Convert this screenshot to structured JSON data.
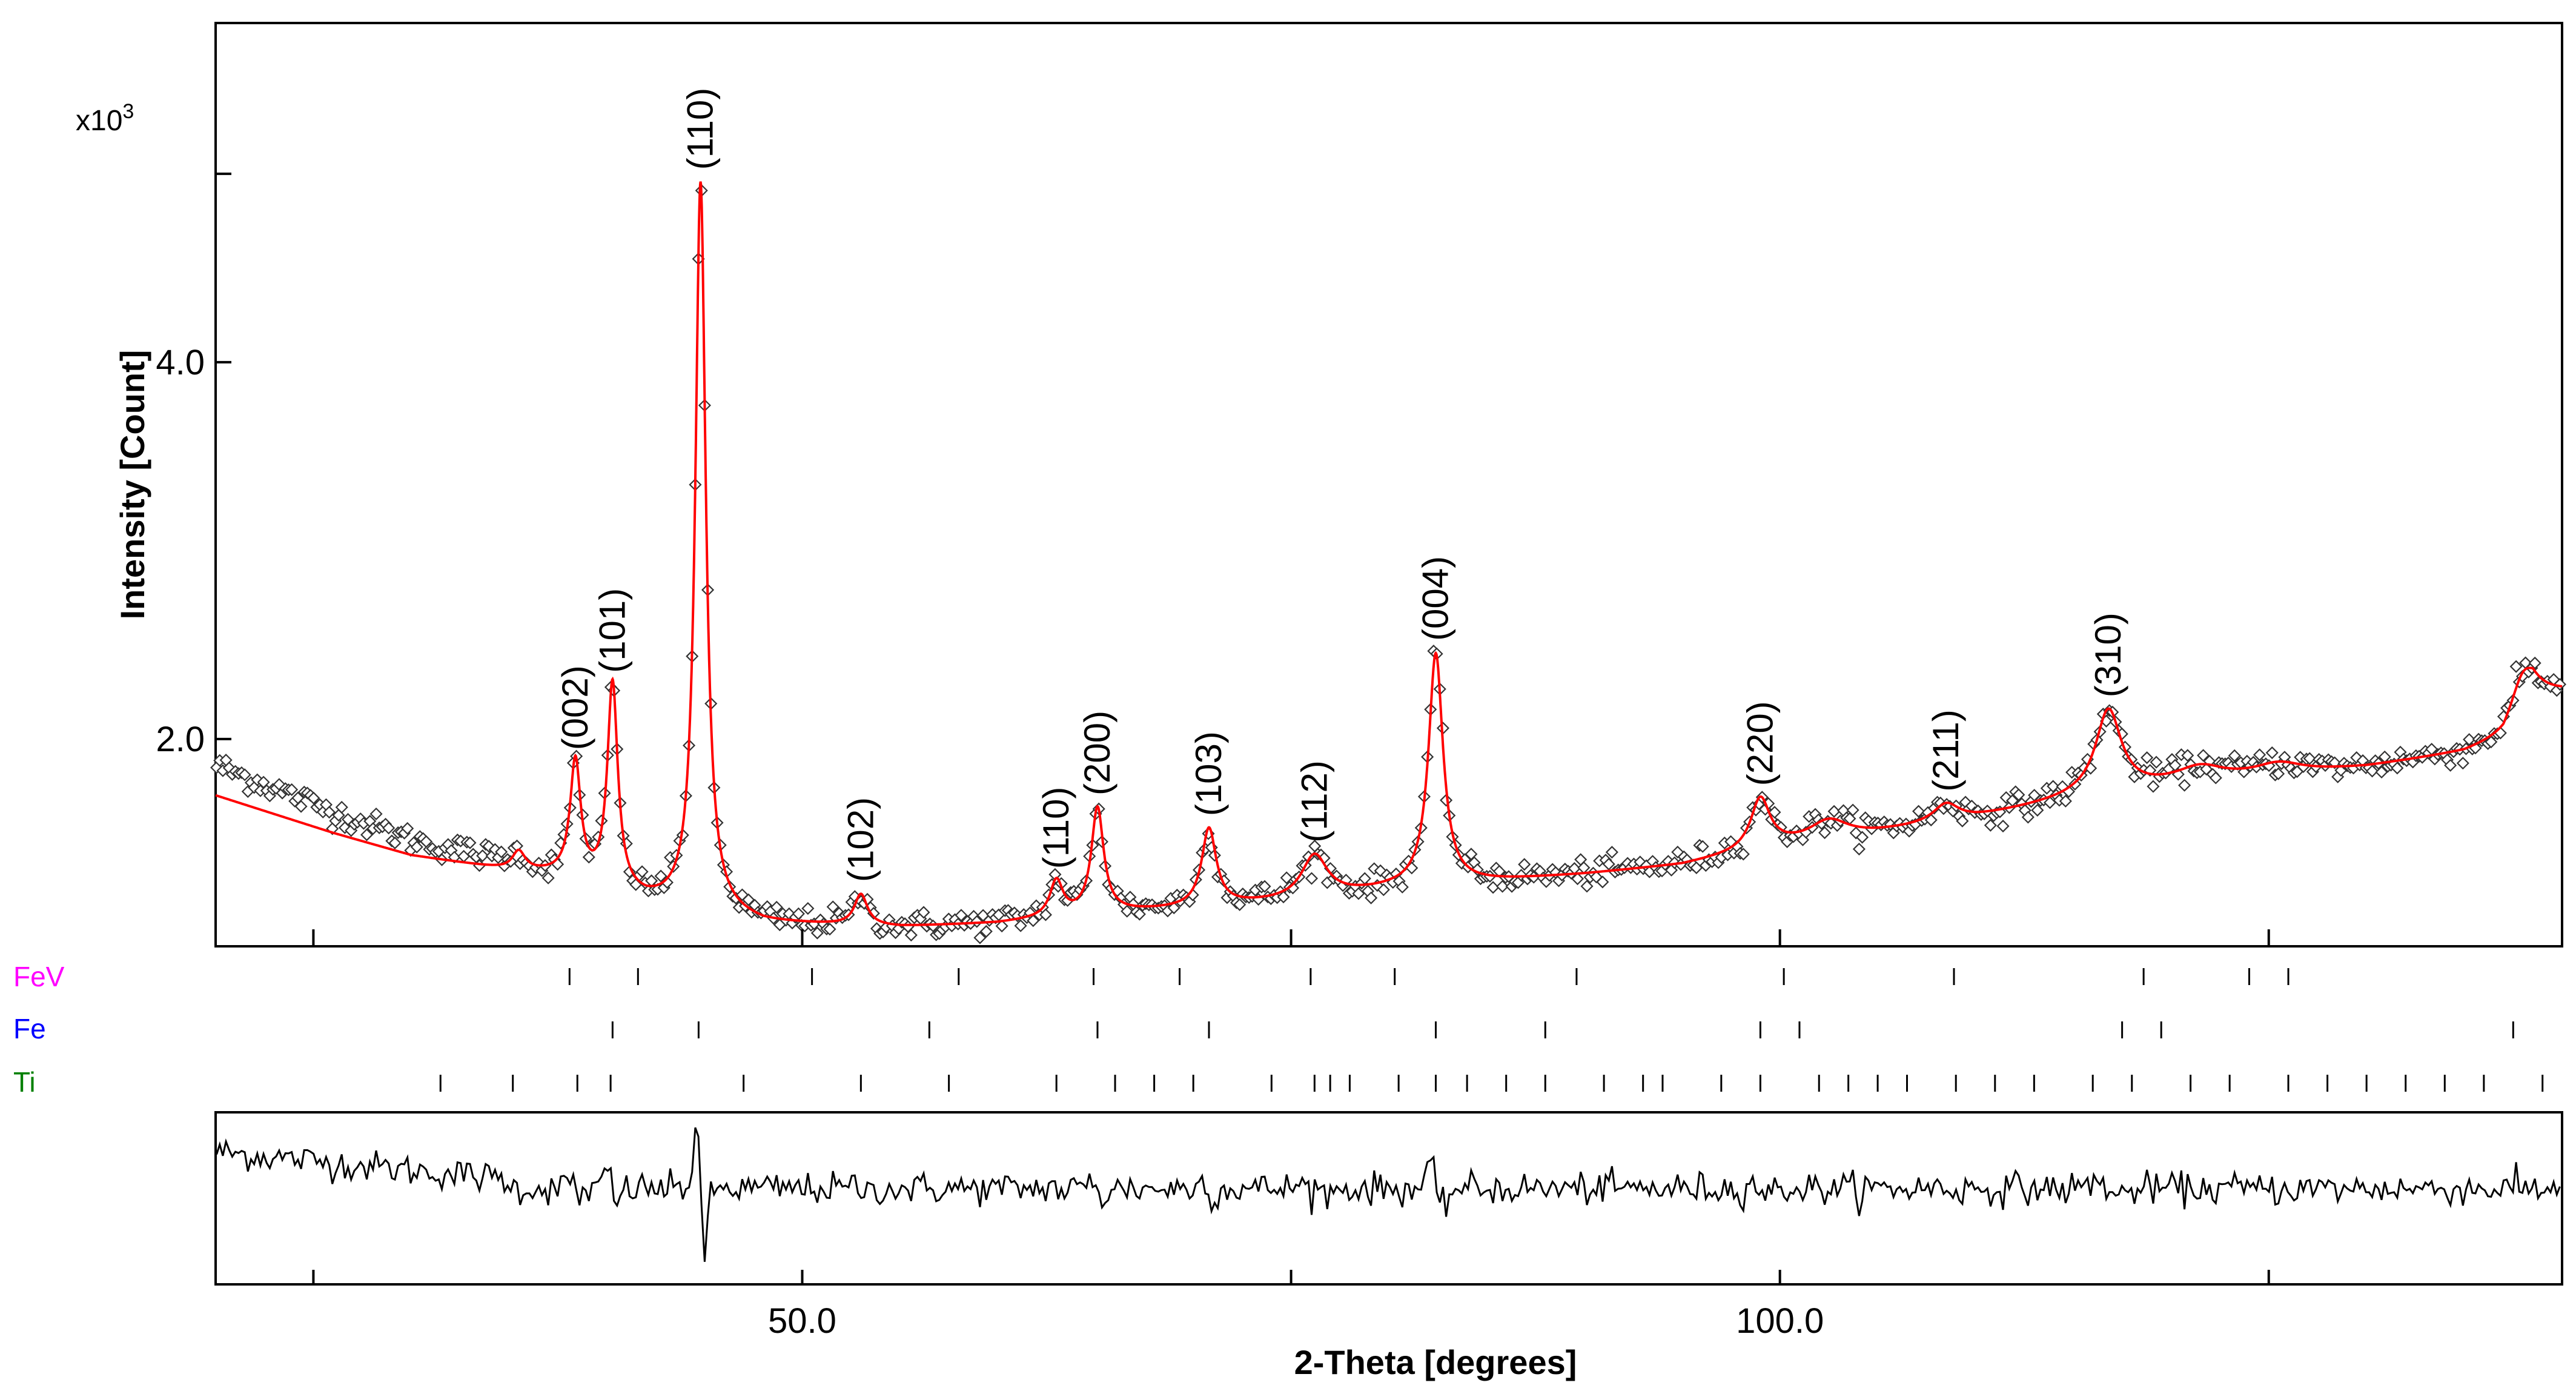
{
  "chart_data": {
    "type": "line",
    "xlabel": "2-Theta [degrees]",
    "ylabel": "Intensity [Count]",
    "y_multiplier": "x10",
    "y_multiplier_exp": "3",
    "xlim": [
      20,
      140
    ],
    "ylim": [
      0.9,
      5.8
    ],
    "x_ticks": [
      25,
      50,
      75,
      100,
      125
    ],
    "x_tick_labels": [
      "50.0",
      "100.0"
    ],
    "y_ticks": [
      2.0,
      4.0,
      5.0
    ],
    "y_tick_labels": [
      "2.0",
      "4.0"
    ],
    "grid": false,
    "legend": "none",
    "colors": {
      "fit": "#ff0000",
      "observed": "#555555",
      "residual": "#000000",
      "FeV": "#ff00ff",
      "Fe": "#0000ff",
      "Ti": "#008000"
    },
    "peaks": [
      {
        "label": "(002)",
        "x": 38.4,
        "y": 1.87,
        "w": 0.32
      },
      {
        "label": "(101)",
        "x": 40.3,
        "y": 2.28,
        "w": 0.32
      },
      {
        "label": "(110)",
        "x": 44.8,
        "y": 4.95,
        "w": 0.32
      },
      {
        "label": "(102)",
        "x": 53.0,
        "y": 1.17,
        "w": 0.4
      },
      {
        "label": "(110)",
        "x": 63.0,
        "y": 1.24,
        "w": 0.4
      },
      {
        "label": "(200)",
        "x": 65.1,
        "y": 1.63,
        "w": 0.38
      },
      {
        "label": "(103)",
        "x": 70.8,
        "y": 1.52,
        "w": 0.45
      },
      {
        "label": "(112)",
        "x": 76.2,
        "y": 1.38,
        "w": 0.8
      },
      {
        "label": "(004)",
        "x": 82.4,
        "y": 2.45,
        "w": 0.45
      },
      {
        "label": "(220)",
        "x": 99.0,
        "y": 1.68,
        "w": 0.6
      },
      {
        "label": "(211)",
        "x": 108.5,
        "y": 1.65,
        "w": 0.8
      },
      {
        "label": "(310)",
        "x": 116.8,
        "y": 2.15,
        "w": 0.8
      }
    ],
    "minor_bumps": [
      {
        "x": 35.5,
        "y": 0.1,
        "w": 0.4
      },
      {
        "x": 102.5,
        "y": 0.1,
        "w": 1.2
      },
      {
        "x": 121.5,
        "y": 0.08,
        "w": 1.5
      },
      {
        "x": 125.5,
        "y": 0.06,
        "w": 1.5
      },
      {
        "x": 138.0,
        "y": 0.2,
        "w": 0.8
      }
    ],
    "background": [
      [
        20,
        1.7
      ],
      [
        26,
        1.5
      ],
      [
        30,
        1.38
      ],
      [
        35,
        1.3
      ],
      [
        38,
        1.27
      ],
      [
        40,
        1.2
      ],
      [
        42,
        1.13
      ],
      [
        45,
        1.08
      ],
      [
        48,
        1.02
      ],
      [
        55,
        1.0
      ],
      [
        60,
        1.02
      ],
      [
        65,
        1.07
      ],
      [
        70,
        1.1
      ],
      [
        75,
        1.14
      ],
      [
        80,
        1.2
      ],
      [
        85,
        1.24
      ],
      [
        90,
        1.28
      ],
      [
        95,
        1.33
      ],
      [
        100,
        1.43
      ],
      [
        105,
        1.5
      ],
      [
        110,
        1.58
      ],
      [
        115,
        1.68
      ],
      [
        120,
        1.75
      ],
      [
        125,
        1.8
      ],
      [
        130,
        1.85
      ],
      [
        135,
        1.93
      ],
      [
        137,
        2.0
      ],
      [
        138.5,
        2.23
      ],
      [
        140,
        2.25
      ]
    ],
    "reflection_markers": [
      {
        "phase": "FeV",
        "ticks": [
          38.1,
          41.6,
          50.5,
          58.0,
          64.9,
          69.3,
          76.0,
          80.3,
          89.6,
          100.2,
          108.9,
          118.6,
          124.0,
          126.0
        ]
      },
      {
        "phase": "Fe",
        "ticks": [
          40.3,
          44.7,
          56.5,
          65.1,
          70.8,
          82.4,
          88.0,
          99.0,
          101.0,
          117.5,
          119.5,
          137.5
        ]
      },
      {
        "phase": "Ti",
        "ticks": [
          31.5,
          35.2,
          38.5,
          40.2,
          47.0,
          53.0,
          57.5,
          63.0,
          66.0,
          68.0,
          70.0,
          74.0,
          76.2,
          77.0,
          78.0,
          80.5,
          82.4,
          84.0,
          86.0,
          88.0,
          91.0,
          93.0,
          94.0,
          97.0,
          99.0,
          102.0,
          103.5,
          105.0,
          106.5,
          109.0,
          111.0,
          113.0,
          116.0,
          118.0,
          121.0,
          123.0,
          126.0,
          128.0,
          130.0,
          132.0,
          134.0,
          136.0,
          139.0
        ]
      }
    ]
  }
}
